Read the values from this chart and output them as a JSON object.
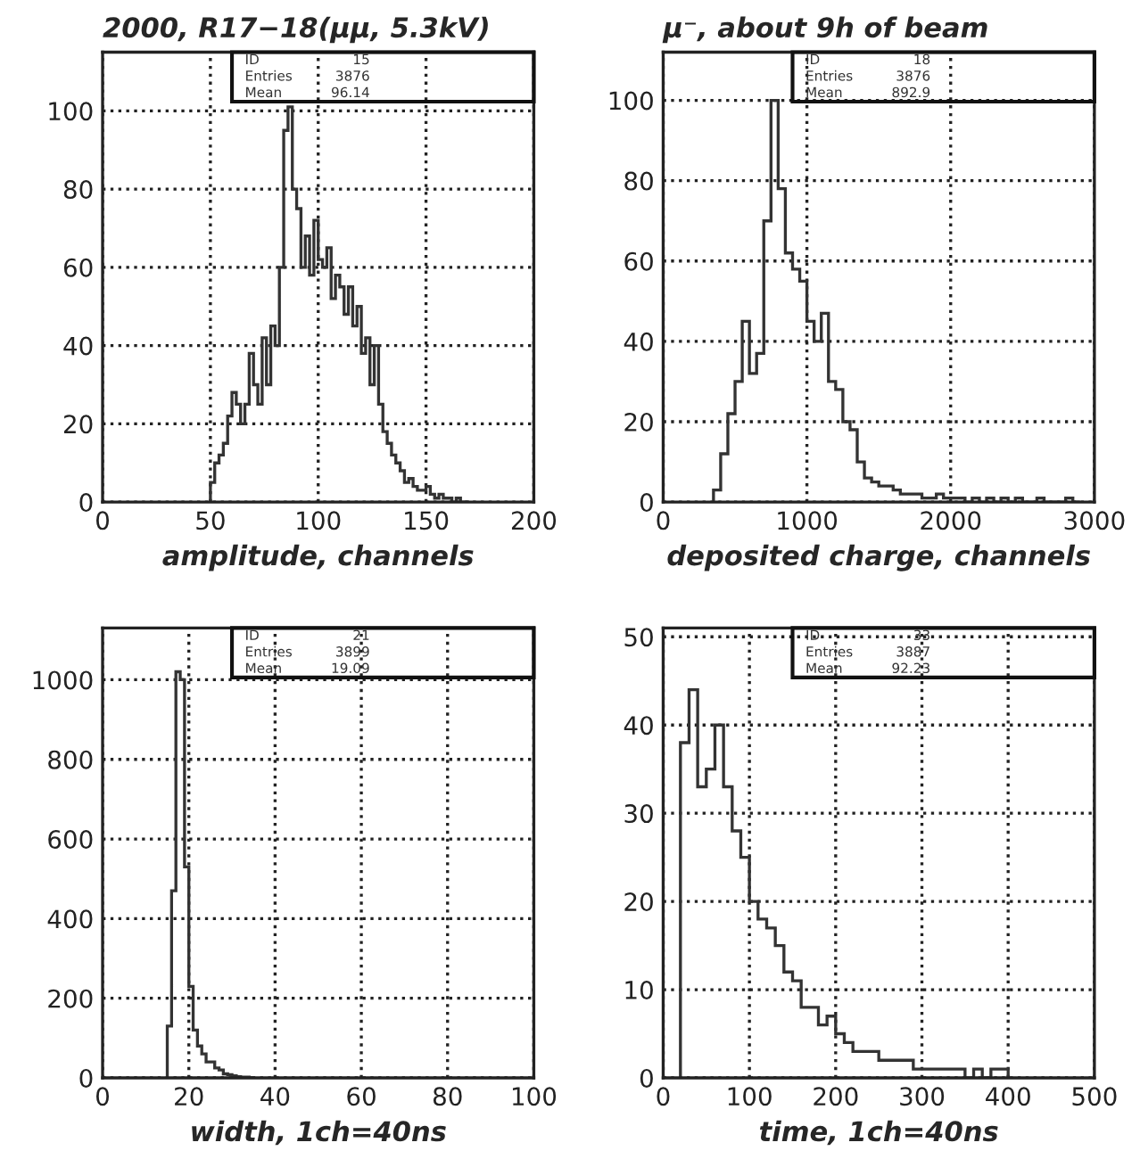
{
  "chart_data": [
    {
      "type": "histogram",
      "title": "2000, R17−18(μμ, 5.3kV)",
      "xlabel": "amplitude, channels",
      "annotations": [
        "ID",
        "15",
        "Entries",
        "3876",
        "Mean",
        "96.14"
      ],
      "bins": [
        50,
        52,
        54,
        56,
        58,
        60,
        62,
        64,
        66,
        68,
        70,
        72,
        74,
        76,
        78,
        80,
        82,
        84,
        86,
        88,
        90,
        92,
        94,
        96,
        98,
        100,
        102,
        104,
        106,
        108,
        110,
        112,
        114,
        116,
        118,
        120,
        122,
        124,
        126,
        128,
        130,
        132,
        134,
        136,
        138,
        140,
        142,
        144,
        146,
        148,
        150,
        152,
        154,
        156,
        158,
        160,
        162,
        164,
        166,
        168,
        170
      ],
      "values": [
        5,
        10,
        12,
        15,
        22,
        28,
        25,
        20,
        25,
        38,
        30,
        25,
        42,
        30,
        45,
        40,
        60,
        95,
        101,
        80,
        75,
        60,
        68,
        58,
        72,
        62,
        60,
        65,
        52,
        58,
        55,
        48,
        55,
        45,
        50,
        38,
        42,
        30,
        40,
        25,
        18,
        15,
        12,
        10,
        8,
        5,
        6,
        4,
        3,
        3,
        4,
        2,
        1,
        2,
        1,
        1,
        0,
        1,
        0,
        0
      ],
      "color": "#333333",
      "xlim": [
        0,
        200
      ],
      "ylim": [
        0,
        115
      ],
      "xticks": [
        0,
        50,
        100,
        150,
        200
      ],
      "yticks": [
        0,
        20,
        40,
        60,
        80,
        100
      ],
      "grid": true,
      "line_style": "dotted"
    },
    {
      "type": "histogram",
      "title": "μ⁻, about 9h of beam",
      "xlabel": "deposited charge, channels",
      "annotations": [
        "ID",
        "18",
        "Entries",
        "3876",
        "Mean",
        "892.9"
      ],
      "bins": [
        350,
        400,
        450,
        500,
        550,
        600,
        650,
        700,
        750,
        800,
        850,
        900,
        950,
        1000,
        1050,
        1100,
        1150,
        1200,
        1250,
        1300,
        1350,
        1400,
        1450,
        1500,
        1550,
        1600,
        1650,
        1700,
        1750,
        1800,
        1850,
        1900,
        1950,
        2000,
        2050,
        2100,
        2150,
        2200,
        2250,
        2300,
        2350,
        2400,
        2450,
        2500,
        2550,
        2600,
        2650,
        2700,
        2750,
        2800,
        2850,
        2900
      ],
      "values": [
        3,
        12,
        22,
        30,
        45,
        32,
        37,
        70,
        100,
        78,
        62,
        58,
        55,
        45,
        40,
        47,
        30,
        28,
        20,
        18,
        10,
        6,
        5,
        4,
        4,
        3,
        2,
        2,
        2,
        1,
        1,
        2,
        1,
        1,
        1,
        0,
        1,
        0,
        1,
        0,
        1,
        0,
        1,
        0,
        0,
        1,
        0,
        0,
        0,
        1,
        0
      ],
      "color": "#333333",
      "xlim": [
        0,
        3000
      ],
      "ylim": [
        0,
        112
      ],
      "xticks": [
        0,
        1000,
        2000,
        3000
      ],
      "yticks": [
        0,
        20,
        40,
        60,
        80,
        100
      ],
      "grid": true,
      "line_style": "dotted"
    },
    {
      "type": "histogram",
      "xlabel": "width, 1ch=40ns",
      "annotations": [
        "ID",
        "21",
        "Entries",
        "3899",
        "Mean",
        "19.09"
      ],
      "bins": [
        15,
        16,
        17,
        18,
        19,
        20,
        21,
        22,
        23,
        24,
        25,
        26,
        27,
        28,
        29,
        30,
        31,
        32,
        33,
        34,
        35
      ],
      "values": [
        130,
        470,
        1020,
        1000,
        530,
        230,
        120,
        80,
        60,
        40,
        40,
        25,
        20,
        10,
        8,
        5,
        3,
        2,
        2,
        1
      ],
      "color": "#333333",
      "xlim": [
        0,
        100
      ],
      "ylim": [
        0,
        1130
      ],
      "xticks": [
        0,
        20,
        40,
        60,
        80,
        100
      ],
      "yticks": [
        0,
        200,
        400,
        600,
        800,
        1000
      ],
      "grid": true,
      "line_style": "dotted"
    },
    {
      "type": "histogram",
      "xlabel": "time, 1ch=40ns",
      "annotations": [
        "ID",
        "33",
        "Entries",
        "3887",
        "Mean",
        "92.23"
      ],
      "bins": [
        20,
        30,
        40,
        50,
        60,
        70,
        80,
        90,
        100,
        110,
        120,
        130,
        140,
        150,
        160,
        170,
        180,
        190,
        200,
        210,
        220,
        230,
        240,
        250,
        260,
        270,
        280,
        290,
        300,
        310,
        320,
        330,
        340,
        350,
        360,
        370,
        380,
        390,
        400
      ],
      "values": [
        38,
        44,
        33,
        35,
        40,
        33,
        28,
        25,
        20,
        18,
        17,
        15,
        12,
        11,
        8,
        8,
        6,
        7,
        5,
        4,
        3,
        3,
        3,
        2,
        2,
        2,
        2,
        1,
        1,
        1,
        1,
        1,
        1,
        0,
        1,
        0,
        1,
        1
      ],
      "color": "#333333",
      "xlim": [
        0,
        500
      ],
      "ylim": [
        0,
        51
      ],
      "xticks": [
        0,
        100,
        200,
        300,
        400,
        500
      ],
      "yticks": [
        0,
        10,
        20,
        30,
        40,
        50
      ],
      "grid": true,
      "line_style": "dotted"
    }
  ]
}
